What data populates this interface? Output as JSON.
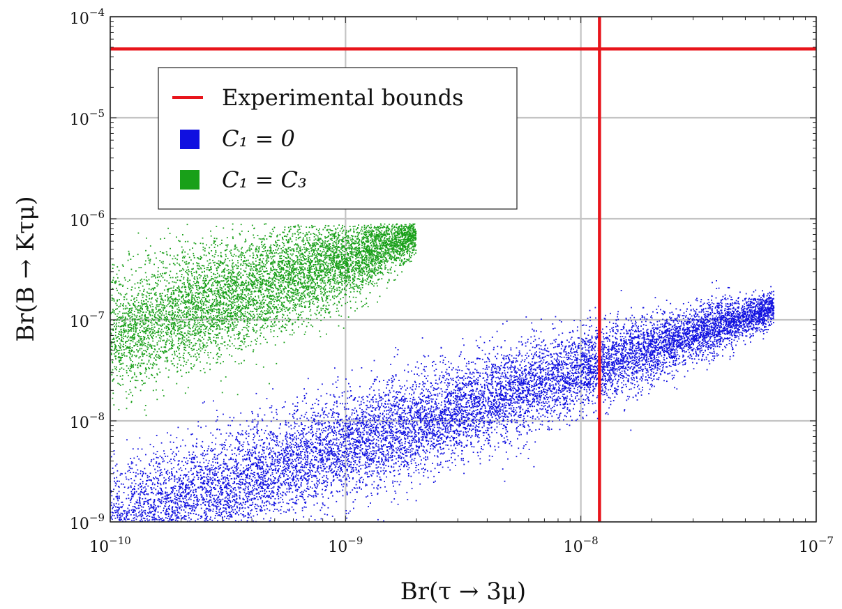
{
  "chart_data": {
    "type": "scatter",
    "title": "",
    "xlabel": "Br(τ → 3μ)",
    "ylabel": "Br(B → Kτμ)",
    "xscale": "log",
    "yscale": "log",
    "xlim": [
      1e-10,
      1e-07
    ],
    "ylim": [
      1e-09,
      0.0001
    ],
    "grid": true,
    "xticks": [
      {
        "value": 1e-10,
        "base": "10",
        "exp": "−10"
      },
      {
        "value": 1e-09,
        "base": "10",
        "exp": "−9"
      },
      {
        "value": 1e-08,
        "base": "10",
        "exp": "−8"
      },
      {
        "value": 1e-07,
        "base": "10",
        "exp": "−7"
      }
    ],
    "yticks": [
      {
        "value": 1e-09,
        "base": "10",
        "exp": "−9"
      },
      {
        "value": 1e-08,
        "base": "10",
        "exp": "−8"
      },
      {
        "value": 1e-07,
        "base": "10",
        "exp": "−7"
      },
      {
        "value": 1e-06,
        "base": "10",
        "exp": "−6"
      },
      {
        "value": 1e-05,
        "base": "10",
        "exp": "−5"
      },
      {
        "value": 0.0001,
        "base": "10",
        "exp": "−4"
      }
    ],
    "experimental_bounds": {
      "label": "Experimental bounds",
      "color": "#e8141b",
      "x_bound": 1.2e-08,
      "y_bound": 4.8e-05
    },
    "legend": {
      "location": "upper-left",
      "entries": [
        {
          "label": "Experimental bounds",
          "kind": "line",
          "color": "#e8141b"
        },
        {
          "label": "C₁ = 0",
          "kind": "marker",
          "color": "#1010e0"
        },
        {
          "label": "C₁ = C₃",
          "kind": "marker",
          "color": "#19a019"
        }
      ]
    },
    "series": [
      {
        "name": "C₁ = 0",
        "color": "#1010e0",
        "approx_points": 12000,
        "region_log10": {
          "description": "band rising to the right",
          "log_x_range": [
            -10.0,
            -7.18
          ],
          "centerline": {
            "at_log_x_-10.0": -9.0,
            "slope": 0.75
          },
          "half_width_dex": 0.55,
          "log_y_max": -6.5,
          "log_y_min": -9.0
        }
      },
      {
        "name": "C₁ = C₃",
        "color": "#19a019",
        "approx_points": 7000,
        "region_log10": {
          "description": "band rising to the right, upper-left",
          "log_x_range": [
            -10.0,
            -8.7
          ],
          "centerline": {
            "at_log_x_-10.0": -7.15,
            "slope": 0.75
          },
          "half_width_dex": 0.6,
          "log_y_max": -6.05,
          "log_y_min": -8.1
        }
      }
    ]
  }
}
